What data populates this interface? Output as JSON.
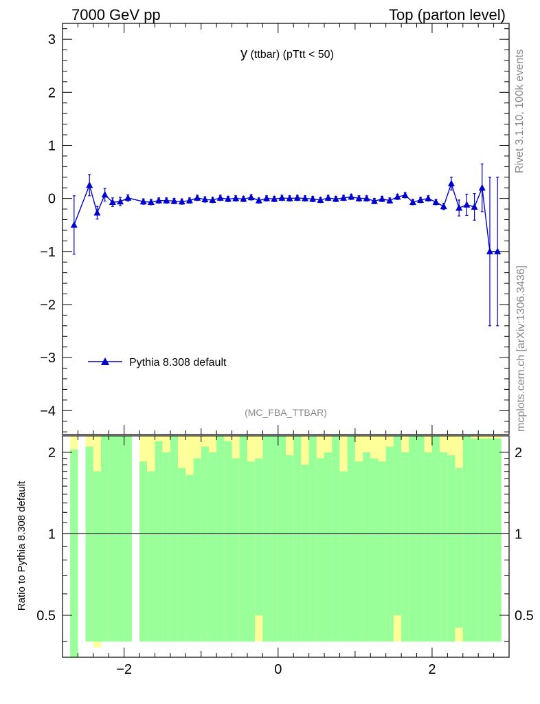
{
  "header": {
    "left": "7000 GeV pp",
    "right": "Top (parton level)"
  },
  "side_text": {
    "rivet": "Rivet 3.1.10,  100k events",
    "source": "mcplots.cern.ch [arXiv:1306.3436]"
  },
  "plot_title": {
    "main": "y",
    "sub": " (ttbar)  (pTtt < 50)"
  },
  "analysis_label": "(MC_FBA_TTBAR)",
  "legend": {
    "label": "Pythia 8.308 default"
  },
  "ratio_ylabel": "Ratio to Pythia 8.308 default",
  "colors": {
    "series": "#0000cc",
    "band_inner": "#99ff99",
    "band_outer": "#ffff99",
    "axis": "#000000",
    "faint_text": "#888888"
  },
  "chart_data": [
    {
      "type": "line",
      "panel": "main",
      "xlim": [
        -2.8,
        3.0
      ],
      "ylim": [
        -4.45,
        3.3
      ],
      "yticks": [
        -4,
        -3,
        -2,
        -1,
        0,
        1,
        2,
        3
      ],
      "ytick_labels": [
        "−4",
        "−3",
        "−2",
        "−1",
        "0",
        "1",
        "2",
        "3"
      ],
      "marker": "triangle",
      "series": [
        {
          "name": "Pythia 8.308 default",
          "x": [
            -2.65,
            -2.45,
            -2.35,
            -2.25,
            -2.15,
            -2.05,
            -1.95,
            -1.75,
            -1.65,
            -1.55,
            -1.45,
            -1.35,
            -1.25,
            -1.15,
            -1.05,
            -0.95,
            -0.85,
            -0.75,
            -0.65,
            -0.55,
            -0.45,
            -0.35,
            -0.25,
            -0.15,
            -0.05,
            0.05,
            0.15,
            0.25,
            0.35,
            0.45,
            0.55,
            0.65,
            0.75,
            0.85,
            0.95,
            1.05,
            1.15,
            1.25,
            1.35,
            1.45,
            1.55,
            1.65,
            1.75,
            1.85,
            1.95,
            2.05,
            2.15,
            2.25,
            2.35,
            2.45,
            2.55,
            2.65,
            2.75,
            2.85
          ],
          "y": [
            -0.5,
            0.25,
            -0.27,
            0.07,
            -0.07,
            -0.06,
            0.01,
            -0.06,
            -0.07,
            -0.04,
            -0.04,
            -0.05,
            -0.06,
            -0.04,
            0.01,
            -0.02,
            -0.03,
            0.01,
            -0.01,
            0.0,
            -0.01,
            0.02,
            -0.04,
            0.0,
            -0.01,
            0.01,
            0.0,
            0.01,
            0.0,
            -0.01,
            -0.03,
            0.01,
            -0.01,
            0.01,
            0.03,
            0.0,
            0.0,
            -0.05,
            -0.01,
            -0.04,
            0.03,
            0.06,
            -0.07,
            -0.03,
            0.0,
            -0.07,
            -0.15,
            0.28,
            -0.18,
            -0.12,
            -0.16,
            0.2,
            -1.0,
            -1.0
          ],
          "yerr": [
            0.55,
            0.2,
            0.12,
            0.12,
            0.08,
            0.08,
            0.06,
            0.05,
            0.05,
            0.05,
            0.05,
            0.05,
            0.05,
            0.05,
            0.05,
            0.05,
            0.05,
            0.05,
            0.05,
            0.05,
            0.05,
            0.05,
            0.05,
            0.05,
            0.05,
            0.05,
            0.05,
            0.05,
            0.05,
            0.05,
            0.05,
            0.05,
            0.05,
            0.05,
            0.05,
            0.05,
            0.05,
            0.05,
            0.05,
            0.05,
            0.05,
            0.05,
            0.05,
            0.05,
            0.05,
            0.05,
            0.06,
            0.12,
            0.15,
            0.2,
            0.25,
            0.45,
            1.4,
            1.4
          ]
        }
      ],
      "xtick_labels": [
        "−2",
        "0",
        "2"
      ],
      "xticks": [
        -2,
        0,
        2
      ]
    },
    {
      "type": "area",
      "panel": "ratio",
      "xlim": [
        -2.8,
        3.0
      ],
      "ylog": true,
      "ylim": [
        0.35,
        2.3
      ],
      "yticks": [
        0.5,
        1,
        2
      ],
      "ytick_labels": [
        "0.5",
        "1",
        "2"
      ],
      "reference_line": 1,
      "bins_low": [
        -2.7,
        -2.6,
        -2.5,
        -2.4,
        -2.3,
        -2.2,
        -2.1,
        -2.0,
        -1.9,
        -1.8,
        -1.7,
        -1.6,
        -1.5,
        -1.4,
        -1.3,
        -1.2,
        -1.1,
        -1.0,
        -0.9,
        -0.8,
        -0.7,
        -0.6,
        -0.5,
        -0.4,
        -0.3,
        -0.2,
        -0.1,
        0.0,
        0.1,
        0.2,
        0.3,
        0.4,
        0.5,
        0.6,
        0.7,
        0.8,
        0.9,
        1.0,
        1.1,
        1.2,
        1.3,
        1.4,
        1.5,
        1.6,
        1.7,
        1.8,
        1.9,
        2.0,
        2.1,
        2.2,
        2.3,
        2.4,
        2.5,
        2.6,
        2.7,
        2.8
      ],
      "inner_band": [
        [
          0,
          2.05
        ],
        [
          0,
          0
        ],
        [
          0.4,
          2.1
        ],
        [
          0.4,
          1.7
        ],
        [
          0.4,
          2.3
        ],
        [
          0.4,
          2.3
        ],
        [
          0.4,
          2.3
        ],
        [
          0.4,
          2.3
        ],
        [
          0,
          0
        ],
        [
          0.4,
          1.85
        ],
        [
          0.4,
          1.7
        ],
        [
          0.4,
          2.2
        ],
        [
          0.4,
          2.0
        ],
        [
          0.4,
          2.3
        ],
        [
          0.4,
          1.75
        ],
        [
          0.4,
          1.65
        ],
        [
          0.4,
          1.9
        ],
        [
          0.4,
          2.1
        ],
        [
          0.4,
          2.0
        ],
        [
          0.4,
          2.3
        ],
        [
          0.4,
          2.2
        ],
        [
          0.4,
          1.9
        ],
        [
          0.4,
          2.3
        ],
        [
          0.4,
          1.85
        ],
        [
          0.5,
          1.9
        ],
        [
          0.4,
          2.3
        ],
        [
          0.4,
          2.3
        ],
        [
          0.4,
          2.3
        ],
        [
          0.4,
          1.95
        ],
        [
          0.4,
          2.3
        ],
        [
          0.4,
          1.8
        ],
        [
          0.4,
          2.3
        ],
        [
          0.4,
          1.9
        ],
        [
          0.4,
          2.0
        ],
        [
          0.4,
          2.3
        ],
        [
          0.4,
          1.7
        ],
        [
          0.4,
          2.3
        ],
        [
          0.4,
          1.85
        ],
        [
          0.4,
          2.0
        ],
        [
          0.4,
          1.9
        ],
        [
          0.4,
          1.85
        ],
        [
          0.4,
          2.1
        ],
        [
          0.5,
          2.3
        ],
        [
          0.4,
          2.0
        ],
        [
          0.4,
          2.3
        ],
        [
          0.4,
          2.3
        ],
        [
          0.4,
          2.0
        ],
        [
          0.4,
          2.3
        ],
        [
          0.4,
          2.0
        ],
        [
          0.4,
          1.95
        ],
        [
          0.45,
          1.75
        ],
        [
          0.4,
          2.3
        ],
        [
          0.4,
          2.25
        ],
        [
          0.4,
          2.25
        ],
        [
          0.4,
          2.25
        ],
        [
          0.4,
          2.25
        ]
      ],
      "outer_band": [
        [
          0,
          2.3
        ],
        [
          0,
          0
        ],
        [
          0.4,
          2.3
        ],
        [
          0.38,
          2.3
        ],
        [
          0.4,
          2.3
        ],
        [
          0.4,
          2.3
        ],
        [
          0.4,
          2.3
        ],
        [
          0.4,
          2.3
        ],
        [
          0,
          0
        ],
        [
          0.4,
          2.3
        ],
        [
          0.4,
          2.3
        ],
        [
          0.4,
          2.3
        ],
        [
          0.4,
          2.3
        ],
        [
          0.4,
          2.3
        ],
        [
          0.4,
          2.3
        ],
        [
          0.4,
          2.3
        ],
        [
          0.4,
          2.3
        ],
        [
          0.4,
          2.3
        ],
        [
          0.4,
          2.3
        ],
        [
          0.4,
          2.3
        ],
        [
          0.4,
          2.3
        ],
        [
          0.4,
          2.3
        ],
        [
          0.4,
          2.3
        ],
        [
          0.4,
          2.3
        ],
        [
          0.4,
          2.3
        ],
        [
          0.4,
          2.3
        ],
        [
          0.4,
          2.3
        ],
        [
          0.4,
          2.3
        ],
        [
          0.4,
          2.3
        ],
        [
          0.4,
          2.3
        ],
        [
          0.4,
          2.3
        ],
        [
          0.4,
          2.3
        ],
        [
          0.4,
          2.3
        ],
        [
          0.4,
          2.3
        ],
        [
          0.4,
          2.3
        ],
        [
          0.4,
          2.3
        ],
        [
          0.4,
          2.3
        ],
        [
          0.4,
          2.3
        ],
        [
          0.42,
          2.3
        ],
        [
          0.4,
          2.3
        ],
        [
          0.4,
          2.3
        ],
        [
          0.4,
          2.3
        ],
        [
          0.4,
          2.3
        ],
        [
          0.4,
          2.3
        ],
        [
          0.4,
          2.3
        ],
        [
          0.4,
          2.3
        ],
        [
          0.4,
          2.3
        ],
        [
          0.4,
          2.3
        ],
        [
          0.4,
          2.3
        ],
        [
          0.4,
          2.3
        ],
        [
          0.4,
          2.3
        ],
        [
          0.4,
          2.3
        ],
        [
          0.4,
          2.3
        ],
        [
          0.4,
          2.3
        ],
        [
          0.4,
          2.3
        ],
        [
          0.4,
          2.3
        ]
      ],
      "xticks": [
        -2,
        0,
        2
      ],
      "xtick_labels": [
        "−2",
        "0",
        "2"
      ]
    }
  ]
}
